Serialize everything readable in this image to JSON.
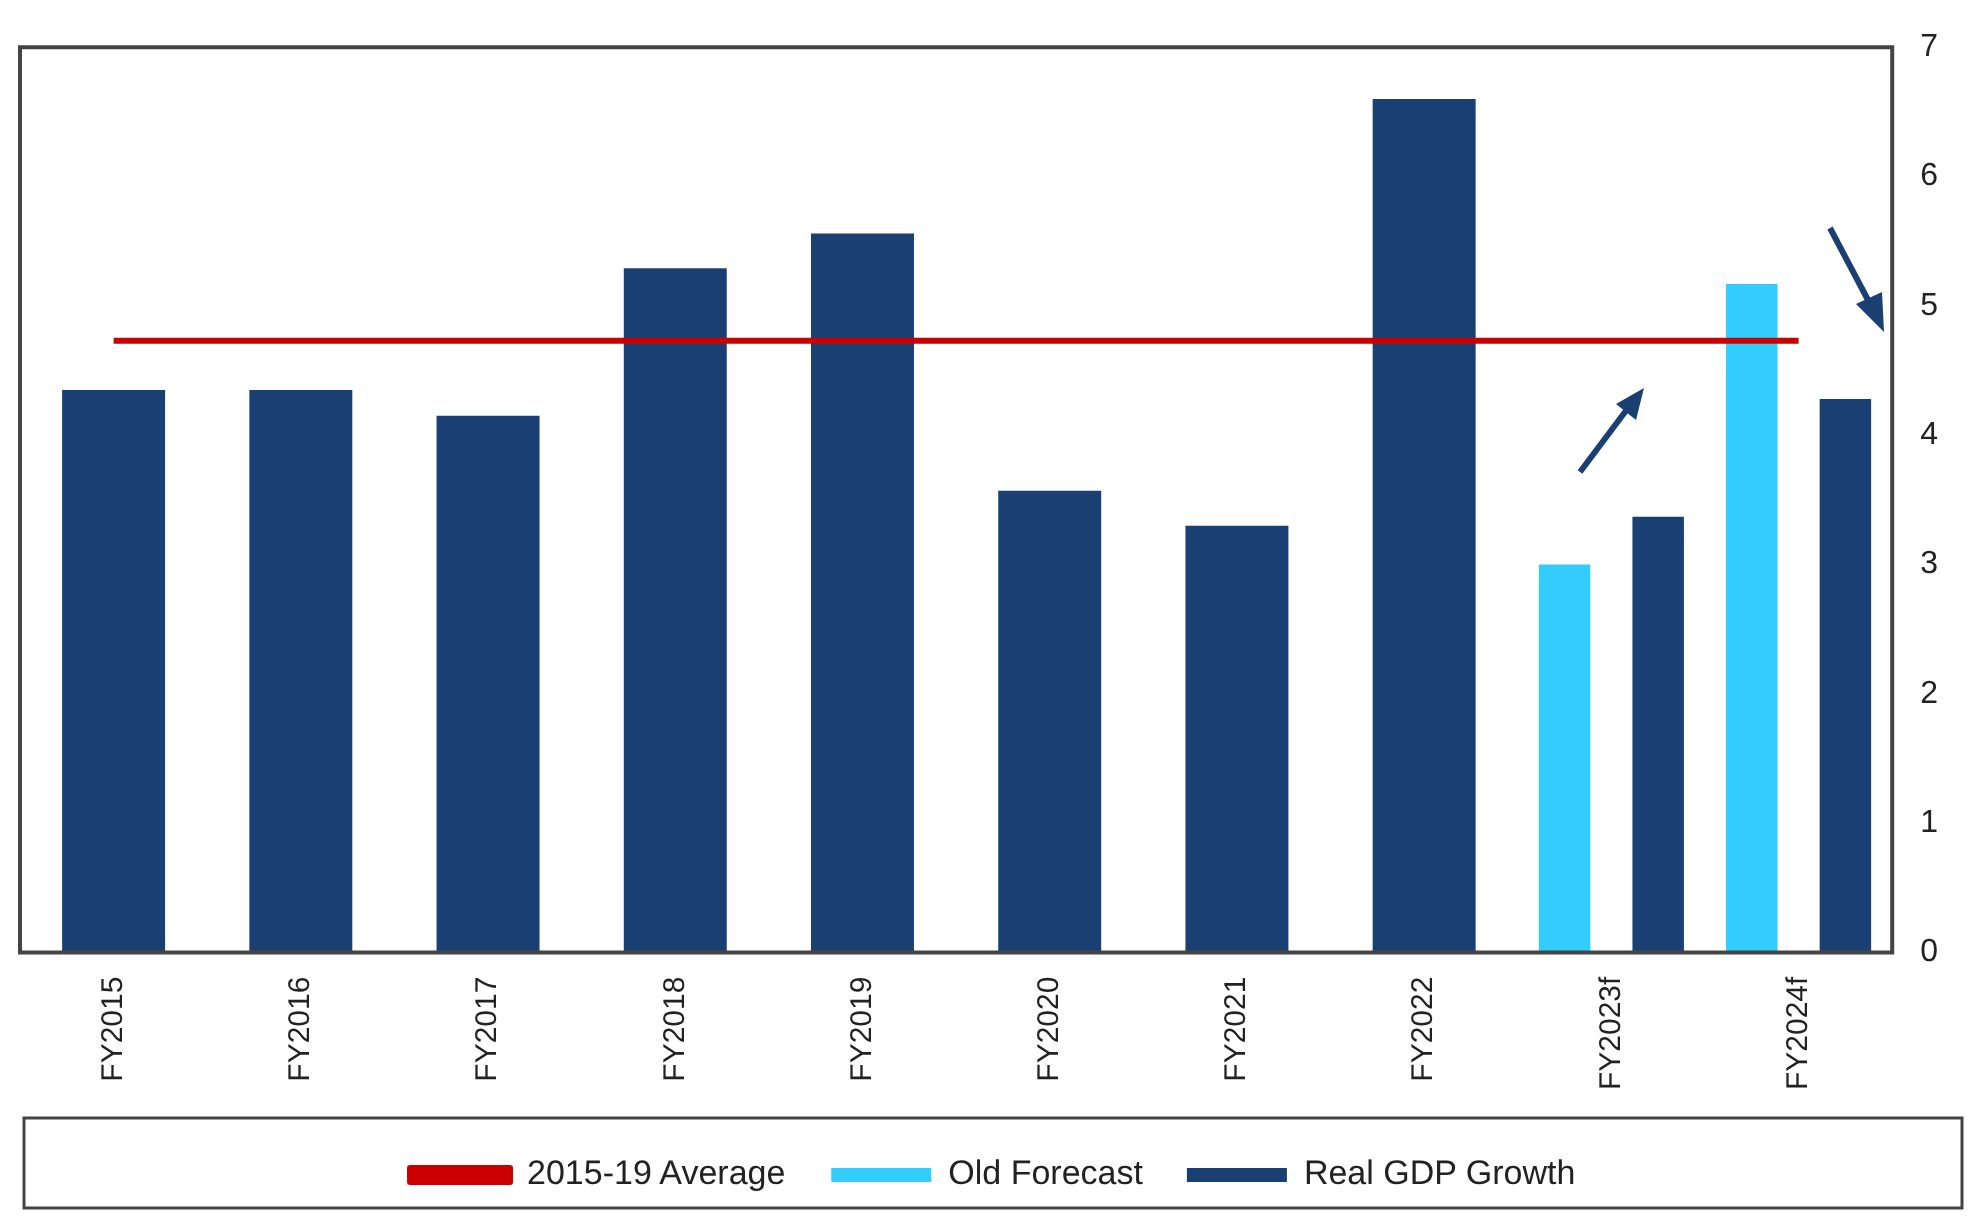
{
  "chart_data": {
    "type": "bar",
    "categories": [
      "FY2015",
      "FY2016",
      "FY2017",
      "FY2018",
      "FY2019",
      "FY2020",
      "FY2021",
      "FY2022",
      "FY2023f",
      "FY2024f"
    ],
    "series": [
      {
        "name": "Old Forecast",
        "color": "#33ccff",
        "values": [
          null,
          null,
          null,
          null,
          null,
          null,
          null,
          null,
          3.0,
          5.17
        ]
      },
      {
        "name": "Real GDP Growth",
        "color": "#1a3f73",
        "values": [
          4.35,
          4.35,
          4.15,
          5.29,
          5.56,
          3.57,
          3.3,
          6.6,
          3.37,
          4.28
        ]
      },
      {
        "name": "2015-19 Average",
        "type": "line",
        "color": "#cc0000",
        "values": [
          4.73,
          4.73,
          4.73,
          4.73,
          4.73,
          4.73,
          4.73,
          4.73,
          4.73,
          4.73
        ]
      }
    ],
    "ylim": [
      0,
      7
    ],
    "yticks": [
      0,
      1,
      2,
      3,
      4,
      5,
      6,
      7
    ],
    "grid": false,
    "legend": "bottom",
    "marker": "none"
  }
}
